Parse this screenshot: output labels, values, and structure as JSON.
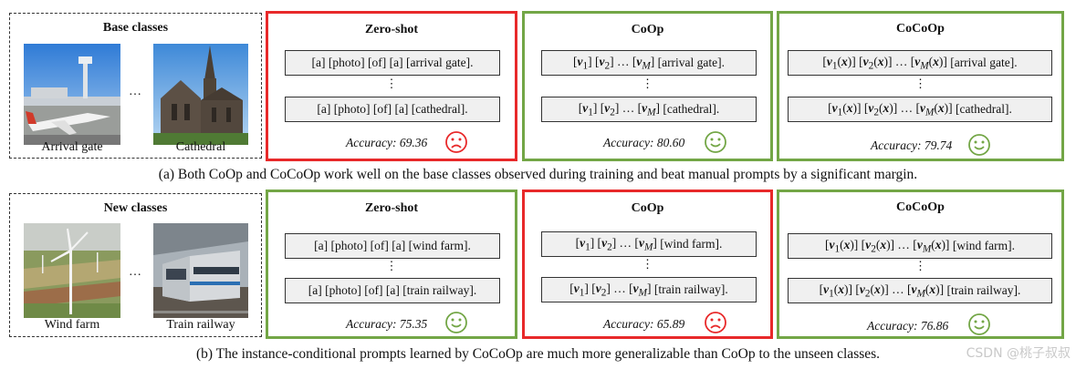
{
  "base": {
    "group_title": "Base classes",
    "img1_caption": "Arrival gate",
    "img2_caption": "Cathedral",
    "dots": "…",
    "zeroshot": {
      "title": "Zero-shot",
      "prompt1": "[a] [photo] [of] [a] [arrival gate].",
      "prompt2": "[a] [photo] [of] [a] [cathedral].",
      "accuracy": "Accuracy: 69.36",
      "face": "sad-face-icon",
      "color": "#e8292a"
    },
    "coop": {
      "title": "CoOp",
      "prompt1_suffix": "[arrival gate].",
      "prompt2_suffix": "[cathedral].",
      "accuracy": "Accuracy: 80.60",
      "face": "happy-face-icon",
      "color": "#73a646"
    },
    "cocoop": {
      "title": "CoCoOp",
      "prompt1_suffix": "[arrival gate].",
      "prompt2_suffix": "[cathedral].",
      "accuracy": "Accuracy: 79.74",
      "face": "happy-face-icon",
      "color": "#73a646"
    },
    "caption": "(a) Both CoOp and CoCoOp work well on the base classes observed during training and beat manual prompts by a significant margin."
  },
  "new": {
    "group_title": "New classes",
    "img1_caption": "Wind farm",
    "img2_caption": "Train railway",
    "dots": "…",
    "zeroshot": {
      "title": "Zero-shot",
      "prompt1": "[a] [photo] [of] [a] [wind farm].",
      "prompt2": "[a] [photo] [of] [a] [train railway].",
      "accuracy": "Accuracy: 75.35",
      "face": "happy-face-icon",
      "color": "#73a646"
    },
    "coop": {
      "title": "CoOp",
      "prompt1_suffix": "[wind farm].",
      "prompt2_suffix": "[train railway].",
      "accuracy": "Accuracy: 65.89",
      "face": "sad-face-icon",
      "color": "#e8292a"
    },
    "cocoop": {
      "title": "CoCoOp",
      "prompt1_suffix": "[wind farm].",
      "prompt2_suffix": "[train railway].",
      "accuracy": "Accuracy: 76.86",
      "face": "happy-face-icon",
      "color": "#73a646"
    },
    "caption": "(b) The instance-conditional prompts learned by CoCoOp are much more generalizable than CoOp to the unseen classes."
  },
  "coop_prefix": "[v1] [v2] … [vM]",
  "cocoop_prefix": "[v1(x)] [v2(x)] … [vM(x)]",
  "vdots": "⋮",
  "watermark": "CSDN @桃子叔叔"
}
